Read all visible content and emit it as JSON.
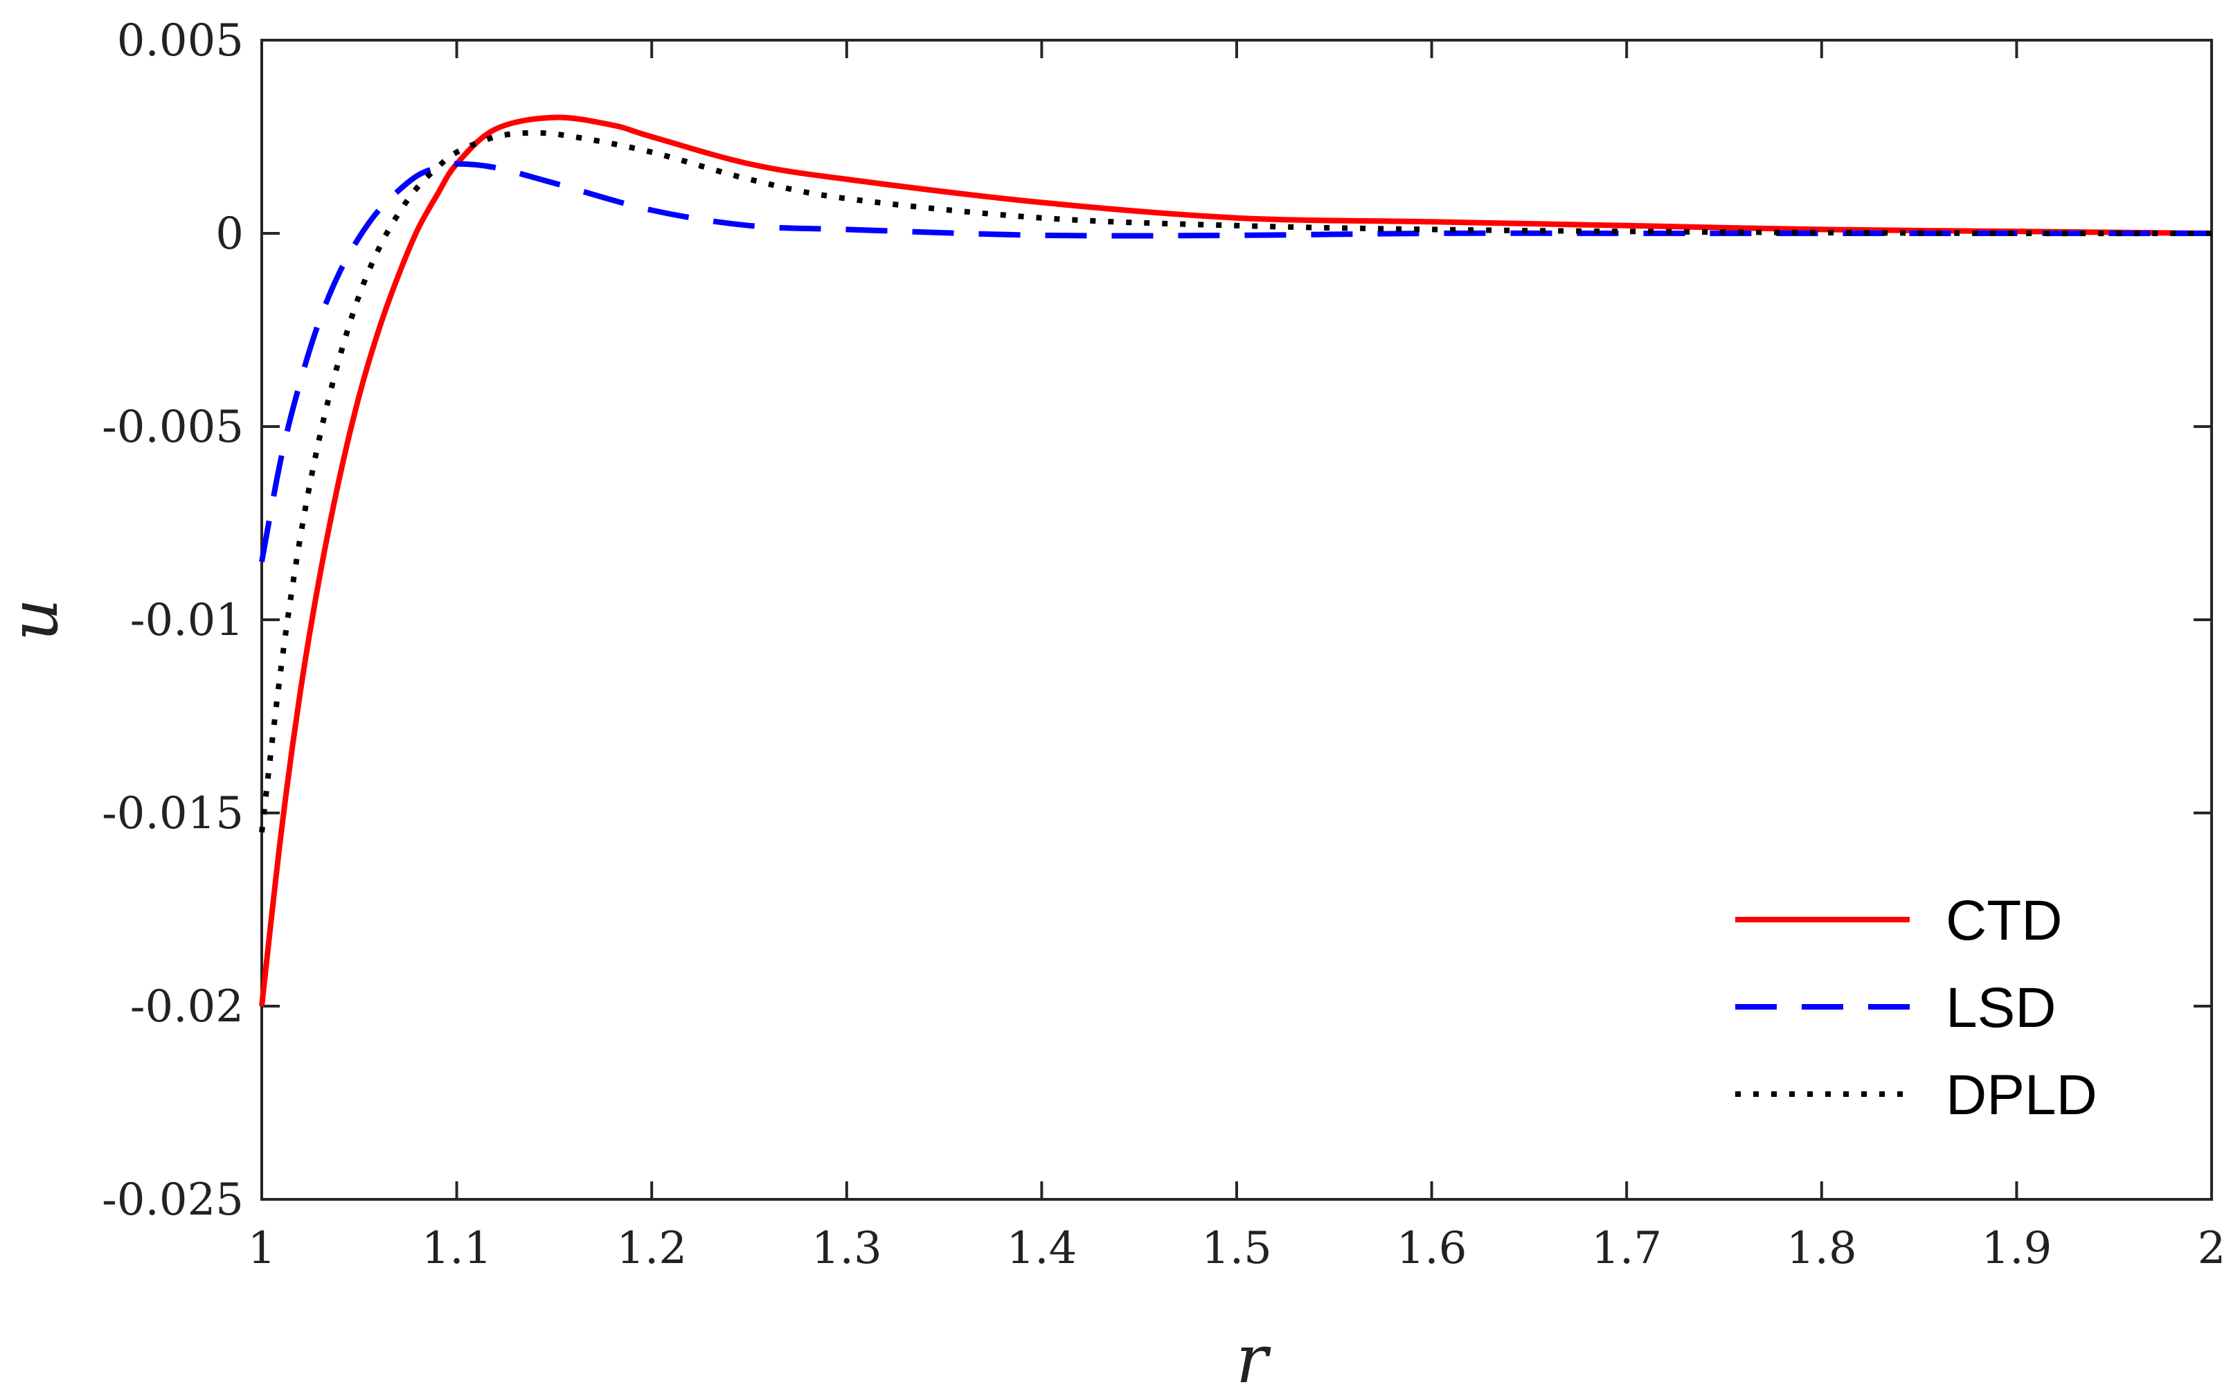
{
  "chart_data": {
    "type": "line",
    "xlabel": "r",
    "ylabel": "u",
    "xlim": [
      1,
      2
    ],
    "ylim": [
      -0.025,
      0.005
    ],
    "xticks": [
      "1",
      "1.1",
      "1.2",
      "1.3",
      "1.4",
      "1.5",
      "1.6",
      "1.7",
      "1.8",
      "1.9",
      "2"
    ],
    "yticks": [
      "0.005",
      "0",
      "-0.005",
      "-0.01",
      "-0.015",
      "-0.02",
      "-0.025"
    ],
    "grid": false,
    "legend_position": "bottom-right",
    "series": [
      {
        "name": "CTD",
        "color": "#ff0000",
        "style": "solid",
        "x": [
          1.0,
          1.01,
          1.02,
          1.03,
          1.04,
          1.05,
          1.06,
          1.07,
          1.08,
          1.09,
          1.1,
          1.12,
          1.15,
          1.18,
          1.2,
          1.25,
          1.3,
          1.4,
          1.5,
          1.6,
          1.7,
          1.8,
          1.9,
          2.0
        ],
        "y": [
          -0.02,
          -0.0155,
          -0.0118,
          -0.0088,
          -0.0063,
          -0.0042,
          -0.0025,
          -0.0011,
          0.0001,
          0.001,
          0.0018,
          0.0027,
          0.003,
          0.0028,
          0.0025,
          0.0018,
          0.0014,
          0.0008,
          0.0004,
          0.0003,
          0.0002,
          0.0001,
          5e-05,
          0.0
        ]
      },
      {
        "name": "LSD",
        "color": "#0000ff",
        "style": "dashed",
        "x": [
          1.0,
          1.01,
          1.02,
          1.03,
          1.04,
          1.05,
          1.06,
          1.07,
          1.08,
          1.09,
          1.1,
          1.12,
          1.15,
          1.2,
          1.25,
          1.3,
          1.4,
          1.5,
          1.6,
          1.7,
          1.8,
          1.9,
          2.0
        ],
        "y": [
          -0.0085,
          -0.0058,
          -0.0038,
          -0.0022,
          -0.001,
          -0.0001,
          0.0006,
          0.0011,
          0.0015,
          0.0017,
          0.0018,
          0.0017,
          0.0013,
          0.0006,
          0.0002,
          0.0001,
          -5e-05,
          -5e-05,
          0.0,
          0.0,
          0.0,
          0.0,
          0.0
        ]
      },
      {
        "name": "DPLD",
        "color": "#000000",
        "style": "dotted",
        "x": [
          1.0,
          1.01,
          1.02,
          1.03,
          1.04,
          1.05,
          1.06,
          1.07,
          1.08,
          1.09,
          1.1,
          1.12,
          1.14,
          1.16,
          1.2,
          1.25,
          1.3,
          1.4,
          1.5,
          1.6,
          1.7,
          1.8,
          1.9,
          2.0
        ],
        "y": [
          -0.0155,
          -0.0112,
          -0.0078,
          -0.0052,
          -0.0032,
          -0.0016,
          -0.0004,
          0.0005,
          0.0012,
          0.0017,
          0.0021,
          0.0025,
          0.0026,
          0.0025,
          0.0021,
          0.0014,
          0.0009,
          0.0004,
          0.0002,
          0.0001,
          5e-05,
          2e-05,
          0.0,
          0.0
        ]
      }
    ]
  }
}
